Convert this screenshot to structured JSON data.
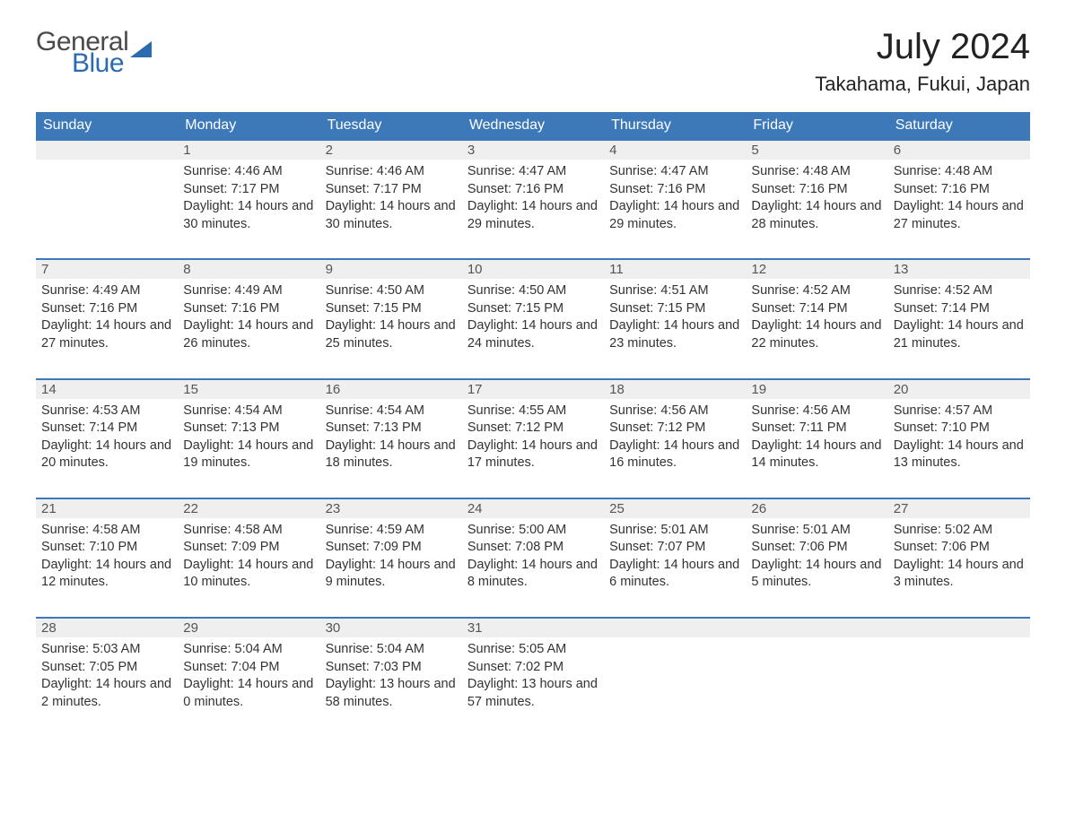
{
  "logo": {
    "word1": "General",
    "word2": "Blue",
    "text_color": "#4a4a4a",
    "accent_color": "#2d6bb0"
  },
  "header": {
    "title": "July 2024",
    "location": "Takahama, Fukui, Japan"
  },
  "colors": {
    "header_bg": "#3d78b8",
    "header_text": "#ffffff",
    "daynum_bg": "#efefef",
    "rule": "#3d78b8",
    "body_bg": "#ffffff"
  },
  "weekday_labels": [
    "Sunday",
    "Monday",
    "Tuesday",
    "Wednesday",
    "Thursday",
    "Friday",
    "Saturday"
  ],
  "field_labels": {
    "sunrise": "Sunrise:",
    "sunset": "Sunset:",
    "daylight": "Daylight:"
  },
  "calendar": {
    "type": "table",
    "first_weekday_offset": 1,
    "days": [
      {
        "n": 1,
        "sunrise": "4:46 AM",
        "sunset": "7:17 PM",
        "daylight": "14 hours and 30 minutes."
      },
      {
        "n": 2,
        "sunrise": "4:46 AM",
        "sunset": "7:17 PM",
        "daylight": "14 hours and 30 minutes."
      },
      {
        "n": 3,
        "sunrise": "4:47 AM",
        "sunset": "7:16 PM",
        "daylight": "14 hours and 29 minutes."
      },
      {
        "n": 4,
        "sunrise": "4:47 AM",
        "sunset": "7:16 PM",
        "daylight": "14 hours and 29 minutes."
      },
      {
        "n": 5,
        "sunrise": "4:48 AM",
        "sunset": "7:16 PM",
        "daylight": "14 hours and 28 minutes."
      },
      {
        "n": 6,
        "sunrise": "4:48 AM",
        "sunset": "7:16 PM",
        "daylight": "14 hours and 27 minutes."
      },
      {
        "n": 7,
        "sunrise": "4:49 AM",
        "sunset": "7:16 PM",
        "daylight": "14 hours and 27 minutes."
      },
      {
        "n": 8,
        "sunrise": "4:49 AM",
        "sunset": "7:16 PM",
        "daylight": "14 hours and 26 minutes."
      },
      {
        "n": 9,
        "sunrise": "4:50 AM",
        "sunset": "7:15 PM",
        "daylight": "14 hours and 25 minutes."
      },
      {
        "n": 10,
        "sunrise": "4:50 AM",
        "sunset": "7:15 PM",
        "daylight": "14 hours and 24 minutes."
      },
      {
        "n": 11,
        "sunrise": "4:51 AM",
        "sunset": "7:15 PM",
        "daylight": "14 hours and 23 minutes."
      },
      {
        "n": 12,
        "sunrise": "4:52 AM",
        "sunset": "7:14 PM",
        "daylight": "14 hours and 22 minutes."
      },
      {
        "n": 13,
        "sunrise": "4:52 AM",
        "sunset": "7:14 PM",
        "daylight": "14 hours and 21 minutes."
      },
      {
        "n": 14,
        "sunrise": "4:53 AM",
        "sunset": "7:14 PM",
        "daylight": "14 hours and 20 minutes."
      },
      {
        "n": 15,
        "sunrise": "4:54 AM",
        "sunset": "7:13 PM",
        "daylight": "14 hours and 19 minutes."
      },
      {
        "n": 16,
        "sunrise": "4:54 AM",
        "sunset": "7:13 PM",
        "daylight": "14 hours and 18 minutes."
      },
      {
        "n": 17,
        "sunrise": "4:55 AM",
        "sunset": "7:12 PM",
        "daylight": "14 hours and 17 minutes."
      },
      {
        "n": 18,
        "sunrise": "4:56 AM",
        "sunset": "7:12 PM",
        "daylight": "14 hours and 16 minutes."
      },
      {
        "n": 19,
        "sunrise": "4:56 AM",
        "sunset": "7:11 PM",
        "daylight": "14 hours and 14 minutes."
      },
      {
        "n": 20,
        "sunrise": "4:57 AM",
        "sunset": "7:10 PM",
        "daylight": "14 hours and 13 minutes."
      },
      {
        "n": 21,
        "sunrise": "4:58 AM",
        "sunset": "7:10 PM",
        "daylight": "14 hours and 12 minutes."
      },
      {
        "n": 22,
        "sunrise": "4:58 AM",
        "sunset": "7:09 PM",
        "daylight": "14 hours and 10 minutes."
      },
      {
        "n": 23,
        "sunrise": "4:59 AM",
        "sunset": "7:09 PM",
        "daylight": "14 hours and 9 minutes."
      },
      {
        "n": 24,
        "sunrise": "5:00 AM",
        "sunset": "7:08 PM",
        "daylight": "14 hours and 8 minutes."
      },
      {
        "n": 25,
        "sunrise": "5:01 AM",
        "sunset": "7:07 PM",
        "daylight": "14 hours and 6 minutes."
      },
      {
        "n": 26,
        "sunrise": "5:01 AM",
        "sunset": "7:06 PM",
        "daylight": "14 hours and 5 minutes."
      },
      {
        "n": 27,
        "sunrise": "5:02 AM",
        "sunset": "7:06 PM",
        "daylight": "14 hours and 3 minutes."
      },
      {
        "n": 28,
        "sunrise": "5:03 AM",
        "sunset": "7:05 PM",
        "daylight": "14 hours and 2 minutes."
      },
      {
        "n": 29,
        "sunrise": "5:04 AM",
        "sunset": "7:04 PM",
        "daylight": "14 hours and 0 minutes."
      },
      {
        "n": 30,
        "sunrise": "5:04 AM",
        "sunset": "7:03 PM",
        "daylight": "13 hours and 58 minutes."
      },
      {
        "n": 31,
        "sunrise": "5:05 AM",
        "sunset": "7:02 PM",
        "daylight": "13 hours and 57 minutes."
      }
    ]
  }
}
